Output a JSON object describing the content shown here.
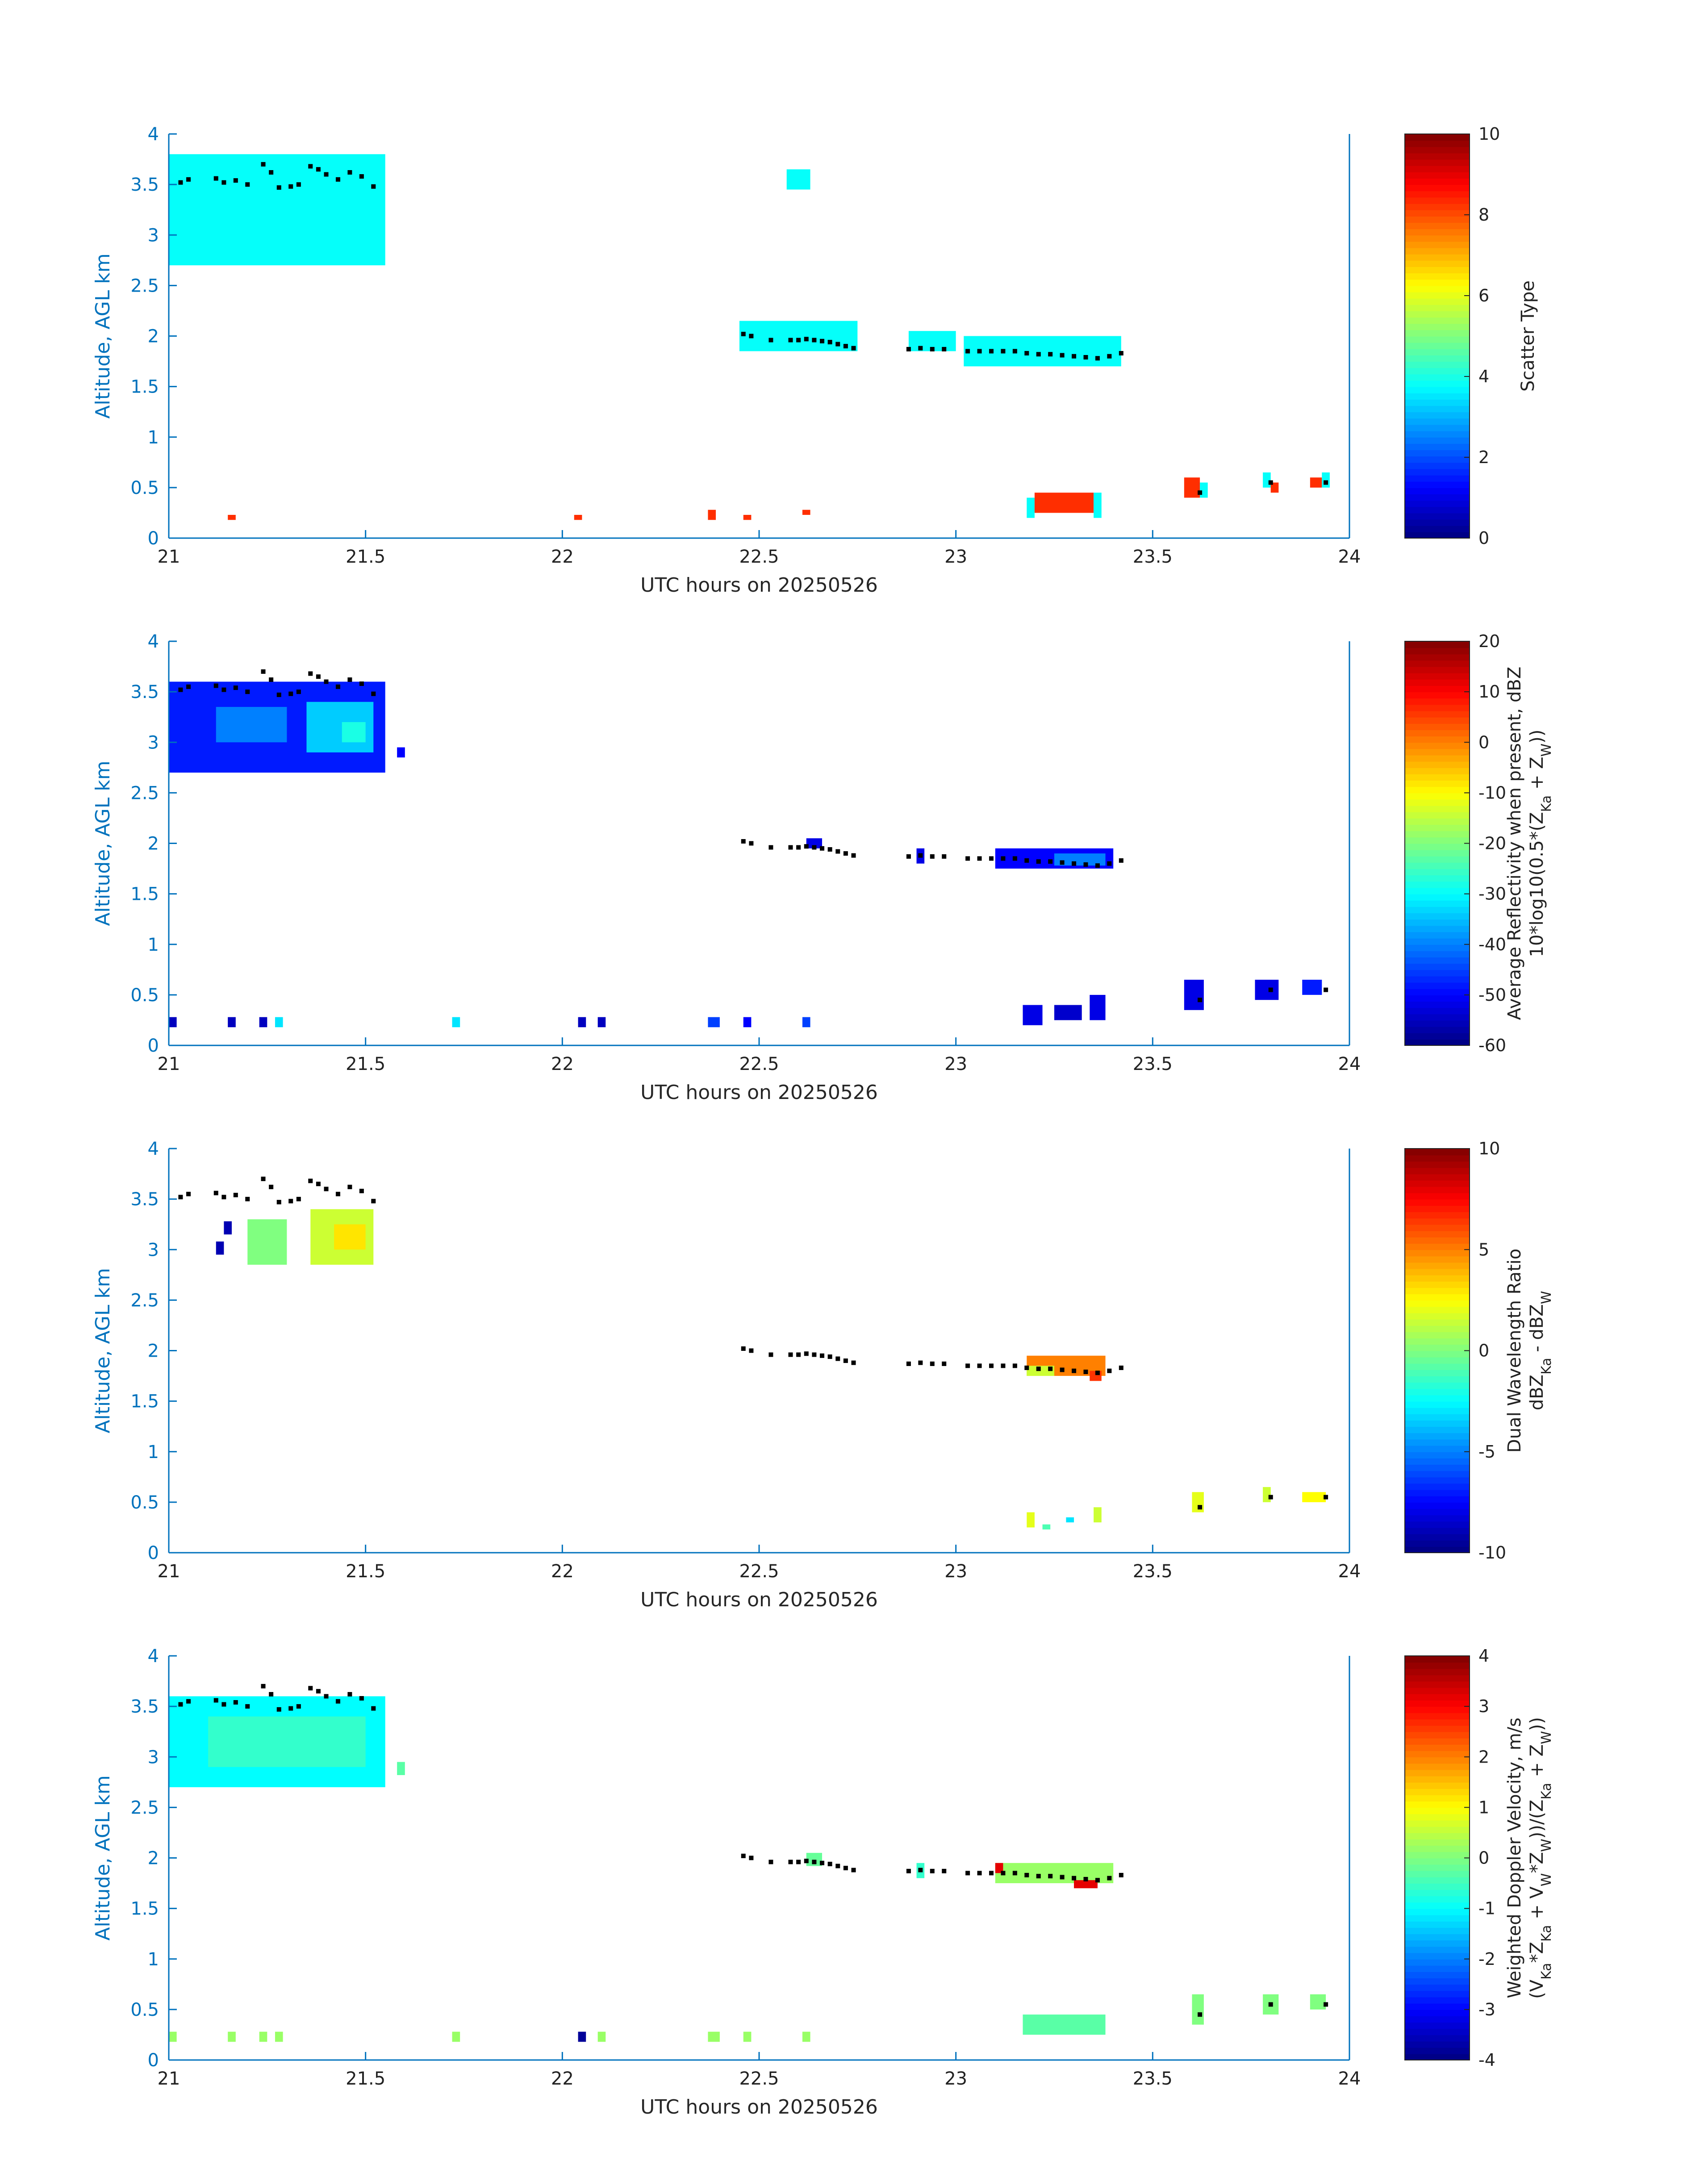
{
  "colors": {
    "axis": "#0072bd",
    "axis_text": "#0072bd",
    "xlabel": "#262626",
    "colorbar_text": "#222222",
    "cloud_top_markers": "#000000",
    "colormap": "jet"
  },
  "chart_data": [
    {
      "type": "heatmap",
      "xlabel": "UTC hours on 20250526",
      "ylabel": "Altitude, AGL km",
      "xlim": [
        21,
        24
      ],
      "ylim": [
        0,
        4
      ],
      "xticks": [
        21,
        21.5,
        22,
        22.5,
        23,
        23.5,
        24
      ],
      "yticks": [
        0,
        0.5,
        1,
        1.5,
        2,
        2.5,
        3,
        3.5,
        4
      ],
      "colorbar": {
        "label_lines": [
          "Scatter Type"
        ],
        "range": [
          0,
          10
        ],
        "ticks": [
          0,
          2,
          4,
          6,
          8,
          10
        ]
      },
      "regions": [
        {
          "x": [
            21.0,
            21.55
          ],
          "y": [
            2.7,
            3.8
          ],
          "value": 3.8
        },
        {
          "x": [
            22.57,
            22.63
          ],
          "y": [
            3.45,
            3.65
          ],
          "value": 3.8
        },
        {
          "x": [
            22.45,
            22.75
          ],
          "y": [
            1.85,
            2.15
          ],
          "value": 3.8
        },
        {
          "x": [
            22.88,
            23.0
          ],
          "y": [
            1.85,
            2.05
          ],
          "value": 3.8
        },
        {
          "x": [
            23.02,
            23.42
          ],
          "y": [
            1.7,
            2.0
          ],
          "value": 3.8
        },
        {
          "x": [
            23.18,
            23.2
          ],
          "y": [
            0.2,
            0.4
          ],
          "value": 3.8
        },
        {
          "x": [
            23.2,
            23.35
          ],
          "y": [
            0.25,
            0.45
          ],
          "value": 8.3
        },
        {
          "x": [
            23.35,
            23.37
          ],
          "y": [
            0.2,
            0.45
          ],
          "value": 3.8
        },
        {
          "x": [
            21.15,
            21.17
          ],
          "y": [
            0.18,
            0.23
          ],
          "value": 8.3
        },
        {
          "x": [
            22.03,
            22.05
          ],
          "y": [
            0.18,
            0.23
          ],
          "value": 8.3
        },
        {
          "x": [
            22.37,
            22.39
          ],
          "y": [
            0.18,
            0.28
          ],
          "value": 8.3
        },
        {
          "x": [
            22.46,
            22.48
          ],
          "y": [
            0.18,
            0.23
          ],
          "value": 8.3
        },
        {
          "x": [
            22.61,
            22.63
          ],
          "y": [
            0.23,
            0.28
          ],
          "value": 8.3
        },
        {
          "x": [
            23.58,
            23.62
          ],
          "y": [
            0.4,
            0.6
          ],
          "value": 8.3
        },
        {
          "x": [
            23.62,
            23.64
          ],
          "y": [
            0.4,
            0.55
          ],
          "value": 3.8
        },
        {
          "x": [
            23.78,
            23.8
          ],
          "y": [
            0.5,
            0.65
          ],
          "value": 3.8
        },
        {
          "x": [
            23.8,
            23.82
          ],
          "y": [
            0.45,
            0.55
          ],
          "value": 8.3
        },
        {
          "x": [
            23.9,
            23.93
          ],
          "y": [
            0.5,
            0.6
          ],
          "value": 8.3
        },
        {
          "x": [
            23.93,
            23.95
          ],
          "y": [
            0.5,
            0.65
          ],
          "value": 3.8
        }
      ]
    },
    {
      "type": "heatmap",
      "xlabel": "UTC hours on 20250526",
      "ylabel": "Altitude, AGL km",
      "xlim": [
        21,
        24
      ],
      "ylim": [
        0,
        4
      ],
      "xticks": [
        21,
        21.5,
        22,
        22.5,
        23,
        23.5,
        24
      ],
      "yticks": [
        0,
        0.5,
        1,
        1.5,
        2,
        2.5,
        3,
        3.5,
        4
      ],
      "colorbar": {
        "label_lines": [
          "Average Reflectivity when present, dBZ",
          "10*log10(0.5*(Z_Ka + Z_W))"
        ],
        "range": [
          -60,
          20
        ],
        "ticks": [
          -60,
          -50,
          -40,
          -30,
          -20,
          -10,
          0,
          10,
          20
        ]
      },
      "regions": [
        {
          "x": [
            21.0,
            21.55
          ],
          "y": [
            2.7,
            3.6
          ],
          "value": -48
        },
        {
          "x": [
            21.12,
            21.3
          ],
          "y": [
            3.0,
            3.35
          ],
          "value": -40
        },
        {
          "x": [
            21.35,
            21.52
          ],
          "y": [
            2.9,
            3.4
          ],
          "value": -34
        },
        {
          "x": [
            21.44,
            21.5
          ],
          "y": [
            3.0,
            3.2
          ],
          "value": -28
        },
        {
          "x": [
            21.58,
            21.6
          ],
          "y": [
            2.85,
            2.95
          ],
          "value": -50
        },
        {
          "x": [
            22.62,
            22.66
          ],
          "y": [
            1.95,
            2.05
          ],
          "value": -52
        },
        {
          "x": [
            22.9,
            22.92
          ],
          "y": [
            1.8,
            1.95
          ],
          "value": -52
        },
        {
          "x": [
            23.1,
            23.4
          ],
          "y": [
            1.75,
            1.95
          ],
          "value": -50
        },
        {
          "x": [
            23.25,
            23.38
          ],
          "y": [
            1.78,
            1.9
          ],
          "value": -40
        },
        {
          "x": [
            23.17,
            23.22
          ],
          "y": [
            0.2,
            0.4
          ],
          "value": -52
        },
        {
          "x": [
            23.25,
            23.32
          ],
          "y": [
            0.25,
            0.4
          ],
          "value": -54
        },
        {
          "x": [
            23.34,
            23.38
          ],
          "y": [
            0.25,
            0.5
          ],
          "value": -52
        },
        {
          "x": [
            23.58,
            23.63
          ],
          "y": [
            0.35,
            0.65
          ],
          "value": -52
        },
        {
          "x": [
            23.76,
            23.82
          ],
          "y": [
            0.45,
            0.65
          ],
          "value": -52
        },
        {
          "x": [
            23.88,
            23.93
          ],
          "y": [
            0.5,
            0.65
          ],
          "value": -48
        },
        {
          "x": [
            21.0,
            21.02
          ],
          "y": [
            0.18,
            0.28
          ],
          "value": -55
        },
        {
          "x": [
            21.15,
            21.17
          ],
          "y": [
            0.18,
            0.28
          ],
          "value": -55
        },
        {
          "x": [
            21.23,
            21.25
          ],
          "y": [
            0.18,
            0.28
          ],
          "value": -55
        },
        {
          "x": [
            21.27,
            21.29
          ],
          "y": [
            0.18,
            0.28
          ],
          "value": -32
        },
        {
          "x": [
            21.72,
            21.74
          ],
          "y": [
            0.18,
            0.28
          ],
          "value": -32
        },
        {
          "x": [
            22.04,
            22.06
          ],
          "y": [
            0.18,
            0.28
          ],
          "value": -55
        },
        {
          "x": [
            22.09,
            22.11
          ],
          "y": [
            0.18,
            0.28
          ],
          "value": -55
        },
        {
          "x": [
            22.37,
            22.4
          ],
          "y": [
            0.18,
            0.28
          ],
          "value": -45
        },
        {
          "x": [
            22.46,
            22.48
          ],
          "y": [
            0.18,
            0.28
          ],
          "value": -50
        },
        {
          "x": [
            22.61,
            22.63
          ],
          "y": [
            0.18,
            0.28
          ],
          "value": -45
        }
      ]
    },
    {
      "type": "heatmap",
      "xlabel": "UTC hours on 20250526",
      "ylabel": "Altitude, AGL km",
      "xlim": [
        21,
        24
      ],
      "ylim": [
        0,
        4
      ],
      "xticks": [
        21,
        21.5,
        22,
        22.5,
        23,
        23.5,
        24
      ],
      "yticks": [
        0,
        0.5,
        1,
        1.5,
        2,
        2.5,
        3,
        3.5,
        4
      ],
      "colorbar": {
        "label_lines": [
          "Dual Wavelength Ratio",
          "dBZ_Ka - dBZ_W"
        ],
        "range": [
          -10,
          10
        ],
        "ticks": [
          -10,
          -5,
          0,
          5,
          10
        ]
      },
      "regions": [
        {
          "x": [
            21.2,
            21.3
          ],
          "y": [
            2.85,
            3.3
          ],
          "value": 0
        },
        {
          "x": [
            21.36,
            21.52
          ],
          "y": [
            2.85,
            3.4
          ],
          "value": 1.5
        },
        {
          "x": [
            21.42,
            21.5
          ],
          "y": [
            3.0,
            3.25
          ],
          "value": 3
        },
        {
          "x": [
            21.14,
            21.16
          ],
          "y": [
            3.15,
            3.28
          ],
          "value": -9
        },
        {
          "x": [
            21.12,
            21.14
          ],
          "y": [
            2.95,
            3.08
          ],
          "value": -9
        },
        {
          "x": [
            23.18,
            23.38
          ],
          "y": [
            1.75,
            1.95
          ],
          "value": 5
        },
        {
          "x": [
            23.18,
            23.25
          ],
          "y": [
            1.75,
            1.85
          ],
          "value": 1.5
        },
        {
          "x": [
            23.34,
            23.37
          ],
          "y": [
            1.7,
            1.8
          ],
          "value": 6.5
        },
        {
          "x": [
            23.18,
            23.2
          ],
          "y": [
            0.25,
            0.4
          ],
          "value": 2
        },
        {
          "x": [
            23.22,
            23.24
          ],
          "y": [
            0.23,
            0.28
          ],
          "value": -1
        },
        {
          "x": [
            23.28,
            23.3
          ],
          "y": [
            0.3,
            0.35
          ],
          "value": -3
        },
        {
          "x": [
            23.35,
            23.37
          ],
          "y": [
            0.3,
            0.45
          ],
          "value": 1.5
        },
        {
          "x": [
            23.6,
            23.63
          ],
          "y": [
            0.4,
            0.6
          ],
          "value": 2
        },
        {
          "x": [
            23.78,
            23.8
          ],
          "y": [
            0.5,
            0.65
          ],
          "value": 1.5
        },
        {
          "x": [
            23.88,
            23.94
          ],
          "y": [
            0.5,
            0.6
          ],
          "value": 2.5
        }
      ]
    },
    {
      "type": "heatmap",
      "xlabel": "UTC hours on 20250526",
      "ylabel": "Altitude, AGL km",
      "xlim": [
        21,
        24
      ],
      "ylim": [
        0,
        4
      ],
      "xticks": [
        21,
        21.5,
        22,
        22.5,
        23,
        23.5,
        24
      ],
      "yticks": [
        0,
        0.5,
        1,
        1.5,
        2,
        2.5,
        3,
        3.5,
        4
      ],
      "colorbar": {
        "label_lines": [
          "Weighted Doppler Velocity, m/s",
          "(V_Ka*Z_Ka + V_W*Z_W))/(Z_Ka + Z_W))"
        ],
        "range": [
          -4,
          4
        ],
        "ticks": [
          -4,
          -3,
          -2,
          -1,
          0,
          1,
          2,
          3,
          4
        ]
      },
      "regions": [
        {
          "x": [
            21.0,
            21.55
          ],
          "y": [
            2.7,
            3.6
          ],
          "value": -1.0
        },
        {
          "x": [
            21.1,
            21.5
          ],
          "y": [
            2.9,
            3.4
          ],
          "value": -0.6
        },
        {
          "x": [
            21.58,
            21.6
          ],
          "y": [
            2.82,
            2.95
          ],
          "value": -0.3
        },
        {
          "x": [
            22.62,
            22.66
          ],
          "y": [
            1.92,
            2.05
          ],
          "value": -0.2
        },
        {
          "x": [
            22.9,
            22.92
          ],
          "y": [
            1.8,
            1.95
          ],
          "value": -0.6
        },
        {
          "x": [
            23.1,
            23.4
          ],
          "y": [
            1.75,
            1.95
          ],
          "value": 0.2
        },
        {
          "x": [
            23.3,
            23.36
          ],
          "y": [
            1.7,
            1.78
          ],
          "value": 3.2
        },
        {
          "x": [
            23.1,
            23.12
          ],
          "y": [
            1.85,
            1.95
          ],
          "value": 3.2
        },
        {
          "x": [
            23.17,
            23.38
          ],
          "y": [
            0.25,
            0.45
          ],
          "value": -0.3
        },
        {
          "x": [
            23.6,
            23.63
          ],
          "y": [
            0.35,
            0.65
          ],
          "value": 0
        },
        {
          "x": [
            23.78,
            23.82
          ],
          "y": [
            0.45,
            0.65
          ],
          "value": 0
        },
        {
          "x": [
            23.9,
            23.94
          ],
          "y": [
            0.5,
            0.65
          ],
          "value": 0
        },
        {
          "x": [
            21.0,
            21.02
          ],
          "y": [
            0.18,
            0.28
          ],
          "value": 0.2
        },
        {
          "x": [
            21.15,
            21.17
          ],
          "y": [
            0.18,
            0.28
          ],
          "value": 0.2
        },
        {
          "x": [
            21.23,
            21.25
          ],
          "y": [
            0.18,
            0.28
          ],
          "value": 0.2
        },
        {
          "x": [
            21.27,
            21.29
          ],
          "y": [
            0.18,
            0.28
          ],
          "value": 0.2
        },
        {
          "x": [
            21.72,
            21.74
          ],
          "y": [
            0.18,
            0.28
          ],
          "value": 0.2
        },
        {
          "x": [
            22.04,
            22.06
          ],
          "y": [
            0.18,
            0.28
          ],
          "value": -3.8
        },
        {
          "x": [
            22.09,
            22.11
          ],
          "y": [
            0.18,
            0.28
          ],
          "value": 0.2
        },
        {
          "x": [
            22.37,
            22.4
          ],
          "y": [
            0.18,
            0.28
          ],
          "value": 0.2
        },
        {
          "x": [
            22.46,
            22.48
          ],
          "y": [
            0.18,
            0.28
          ],
          "value": 0.2
        },
        {
          "x": [
            22.61,
            22.63
          ],
          "y": [
            0.18,
            0.28
          ],
          "value": 0.2
        }
      ]
    }
  ],
  "cloud_top_markers": {
    "x": [
      21.03,
      21.05,
      21.12,
      21.14,
      21.17,
      21.2,
      21.24,
      21.26,
      21.28,
      21.31,
      21.33,
      21.36,
      21.38,
      21.4,
      21.43,
      21.46,
      21.49,
      21.52,
      22.46,
      22.48,
      22.53,
      22.58,
      22.6,
      22.62,
      22.64,
      22.66,
      22.68,
      22.7,
      22.72,
      22.74,
      22.88,
      22.91,
      22.94,
      22.97,
      23.03,
      23.06,
      23.09,
      23.12,
      23.15,
      23.18,
      23.21,
      23.24,
      23.27,
      23.3,
      23.33,
      23.36,
      23.39,
      23.42,
      23.62,
      23.8,
      23.94
    ],
    "y": [
      3.52,
      3.55,
      3.56,
      3.52,
      3.54,
      3.5,
      3.7,
      3.62,
      3.47,
      3.48,
      3.5,
      3.68,
      3.65,
      3.6,
      3.55,
      3.62,
      3.58,
      3.48,
      2.02,
      2.0,
      1.96,
      1.96,
      1.96,
      1.97,
      1.96,
      1.95,
      1.94,
      1.92,
      1.9,
      1.88,
      1.87,
      1.88,
      1.87,
      1.87,
      1.85,
      1.85,
      1.85,
      1.85,
      1.85,
      1.83,
      1.82,
      1.82,
      1.81,
      1.8,
      1.79,
      1.78,
      1.8,
      1.83,
      0.45,
      0.55,
      0.55
    ]
  }
}
